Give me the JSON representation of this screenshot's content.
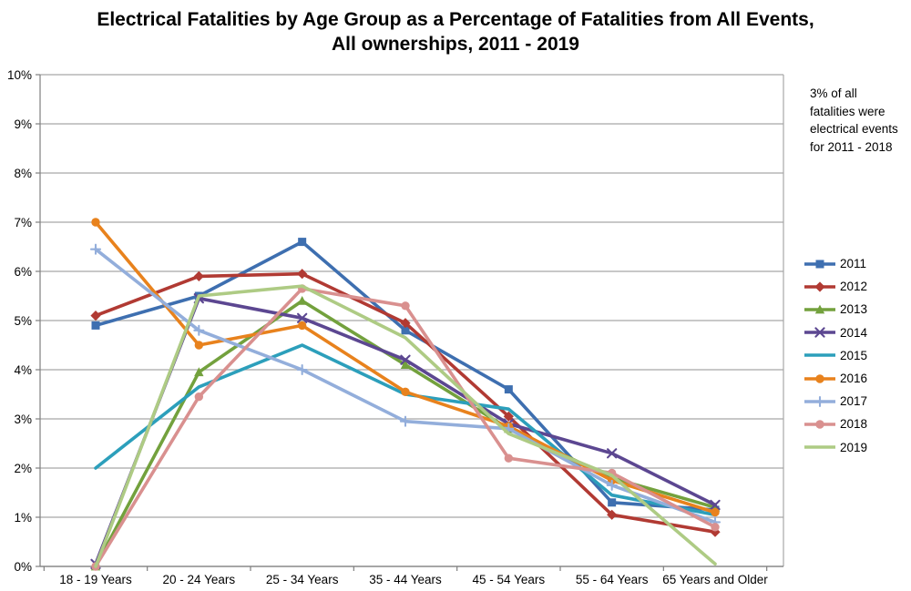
{
  "chart_data": {
    "type": "line",
    "title": "Electrical Fatalities by Age Group as a Percentage of Fatalities from All Events, All ownerships, 2011 - 2019",
    "annotation": "3% of all fatalities were electrical events for 2011 - 2018",
    "categories": [
      "18 - 19 Years",
      "20 - 24 Years",
      "25 - 34 Years",
      "35 - 44 Years",
      "45 - 54 Years",
      "55 - 64 Years",
      "65 Years and Older"
    ],
    "series": [
      {
        "name": "2011",
        "color": "#3E6FB0",
        "marker": "square",
        "values": [
          4.9,
          5.5,
          6.6,
          4.8,
          3.6,
          1.3,
          1.15
        ]
      },
      {
        "name": "2012",
        "color": "#B13A33",
        "marker": "diamond",
        "values": [
          5.1,
          5.9,
          5.95,
          4.95,
          3.05,
          1.05,
          0.7
        ]
      },
      {
        "name": "2013",
        "color": "#73A13D",
        "marker": "triangle",
        "values": [
          0.0,
          3.95,
          5.4,
          4.1,
          2.8,
          1.8,
          1.2
        ]
      },
      {
        "name": "2014",
        "color": "#5C4791",
        "marker": "x",
        "values": [
          0.05,
          5.45,
          5.05,
          4.2,
          2.9,
          2.3,
          1.25
        ]
      },
      {
        "name": "2015",
        "color": "#2C9FBB",
        "marker": "none",
        "values": [
          2.0,
          3.65,
          4.5,
          3.5,
          3.2,
          1.45,
          1.05
        ]
      },
      {
        "name": "2016",
        "color": "#E8821D",
        "marker": "circle",
        "values": [
          7.0,
          4.5,
          4.9,
          3.55,
          2.85,
          1.75,
          1.1
        ]
      },
      {
        "name": "2017",
        "color": "#93AEDB",
        "marker": "plus",
        "values": [
          6.45,
          4.8,
          4.0,
          2.95,
          2.8,
          1.65,
          0.9
        ]
      },
      {
        "name": "2018",
        "color": "#D9908F",
        "marker": "circle",
        "values": [
          0.0,
          3.45,
          5.65,
          5.3,
          2.2,
          1.9,
          0.8
        ]
      },
      {
        "name": "2019",
        "color": "#AECB84",
        "marker": "none",
        "values": [
          0.0,
          5.5,
          5.7,
          4.65,
          2.7,
          1.85,
          0.05
        ]
      }
    ],
    "ylim": [
      0,
      10
    ],
    "ytick_labels": [
      "0%",
      "1%",
      "2%",
      "3%",
      "4%",
      "5%",
      "6%",
      "7%",
      "8%",
      "9%",
      "10%"
    ],
    "grid": true,
    "legend_position": "right"
  }
}
